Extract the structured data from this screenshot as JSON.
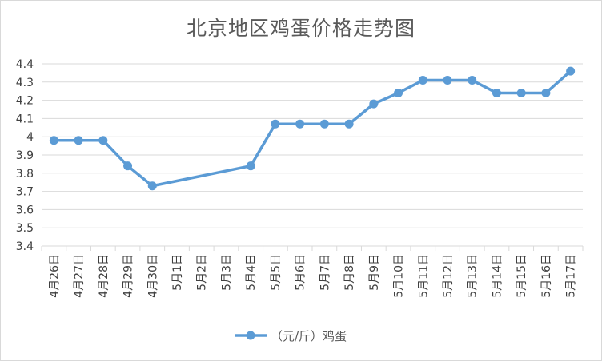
{
  "chart_data": {
    "type": "line",
    "title": "北京地区鸡蛋价格走势图",
    "xlabel": "",
    "ylabel": "",
    "ylim": [
      3.4,
      4.4
    ],
    "yticks": [
      "3.4",
      "3.5",
      "3.6",
      "3.7",
      "3.8",
      "3.9",
      "4",
      "4.1",
      "4.2",
      "4.3",
      "4.4"
    ],
    "grid": true,
    "legend_position": "bottom",
    "categories": [
      "4月26日",
      "4月27日",
      "4月28日",
      "4月29日",
      "4月30日",
      "5月1日",
      "5月2日",
      "5月3日",
      "5月4日",
      "5月5日",
      "5月6日",
      "5月7日",
      "5月8日",
      "5月9日",
      "5月10日",
      "5月11日",
      "5月12日",
      "5月13日",
      "5月14日",
      "5月15日",
      "5月16日",
      "5月17日"
    ],
    "series": [
      {
        "name": "（元/斤）鸡蛋",
        "color": "#5b9bd5",
        "values": [
          3.98,
          3.98,
          3.98,
          3.84,
          3.73,
          null,
          null,
          null,
          3.84,
          4.07,
          4.07,
          4.07,
          4.07,
          4.18,
          4.24,
          4.31,
          4.31,
          4.31,
          4.24,
          4.24,
          4.24,
          4.36
        ]
      }
    ]
  }
}
